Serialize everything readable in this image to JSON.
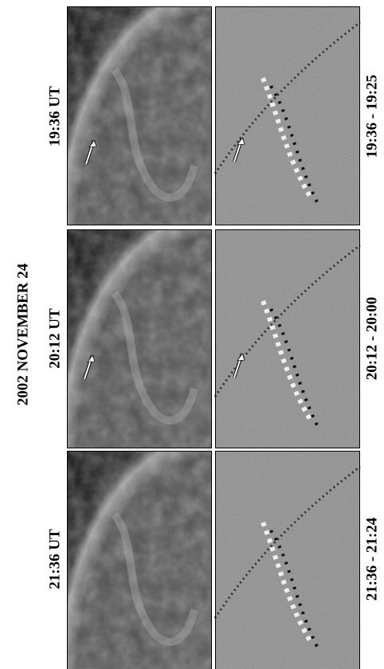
{
  "title": "2002 NOVEMBER 24",
  "rows": [
    {
      "time": "19:36 UT",
      "difference": "19:36 - 19:25"
    },
    {
      "time": "20:12 UT",
      "difference": "20:12 - 20:00"
    },
    {
      "time": "21:36 UT",
      "difference": "21:36 - 21:24"
    }
  ]
}
